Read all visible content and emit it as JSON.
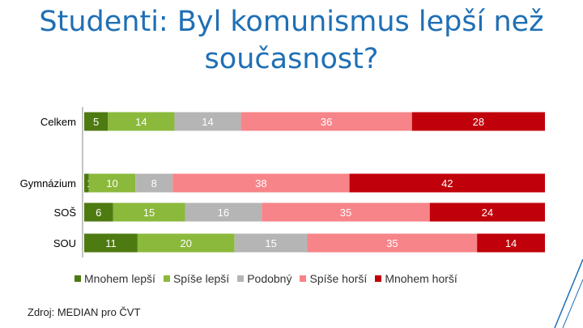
{
  "title_line1": "Studenti: Byl komunismus lepší než",
  "title_line2": "současnost?",
  "source": "Zdroj: MEDIAN pro ČVT",
  "chart_data": {
    "type": "bar",
    "orientation": "horizontal",
    "stacked": true,
    "categories": [
      "Celkem",
      "Gymnázium",
      "SOŠ",
      "SOU"
    ],
    "series": [
      {
        "name": "Mnohem lepší",
        "color": "#4e7a12",
        "values": [
          5,
          1,
          6,
          11
        ]
      },
      {
        "name": "Spíše lepší",
        "color": "#8bb93c",
        "values": [
          14,
          10,
          15,
          20
        ]
      },
      {
        "name": "Podobný",
        "color": "#b5b5b5",
        "values": [
          14,
          8,
          16,
          15
        ]
      },
      {
        "name": "Spíše horší",
        "color": "#f78489",
        "values": [
          36,
          38,
          35,
          35
        ]
      },
      {
        "name": "Mnohem horší",
        "color": "#c0000b",
        "values": [
          28,
          42,
          24,
          14
        ]
      }
    ],
    "label_colors": [
      "#ffffff",
      "#ffffff",
      "#ffffff",
      "#ffffff",
      "#ffffff"
    ],
    "grid": false,
    "legend_position": "bottom"
  }
}
